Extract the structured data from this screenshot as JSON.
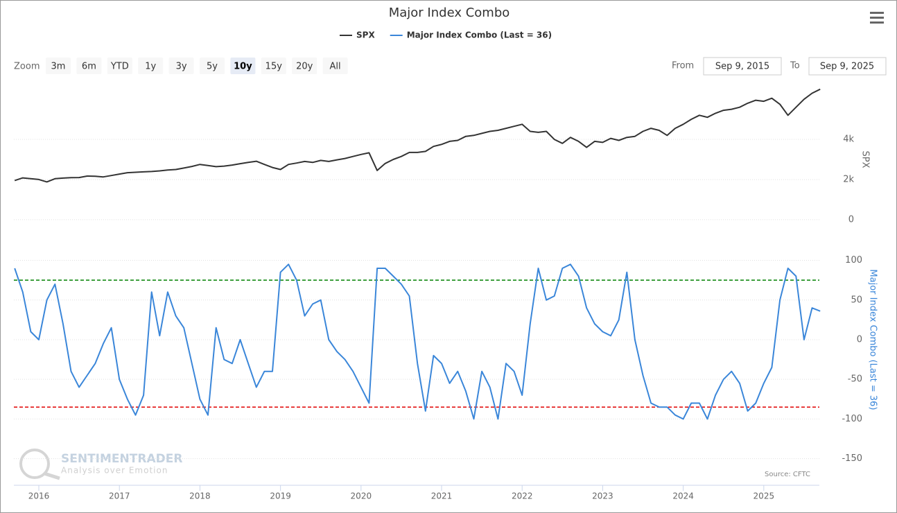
{
  "chart_data": {
    "type": "line",
    "title": "Major Index Combo",
    "x": [
      2015.7,
      2015.8,
      2015.9,
      2016.0,
      2016.1,
      2016.2,
      2016.3,
      2016.4,
      2016.5,
      2016.6,
      2016.7,
      2016.8,
      2016.9,
      2017.0,
      2017.1,
      2017.2,
      2017.3,
      2017.4,
      2017.5,
      2017.6,
      2017.7,
      2017.8,
      2017.9,
      2018.0,
      2018.1,
      2018.2,
      2018.3,
      2018.4,
      2018.5,
      2018.6,
      2018.7,
      2018.8,
      2018.9,
      2019.0,
      2019.1,
      2019.2,
      2019.3,
      2019.4,
      2019.5,
      2019.6,
      2019.7,
      2019.8,
      2019.9,
      2020.0,
      2020.1,
      2020.2,
      2020.3,
      2020.4,
      2020.5,
      2020.6,
      2020.7,
      2020.8,
      2020.9,
      2021.0,
      2021.1,
      2021.2,
      2021.3,
      2021.4,
      2021.5,
      2021.6,
      2021.7,
      2021.8,
      2021.9,
      2022.0,
      2022.1,
      2022.2,
      2022.3,
      2022.4,
      2022.5,
      2022.6,
      2022.7,
      2022.8,
      2022.9,
      2023.0,
      2023.1,
      2023.2,
      2023.3,
      2023.4,
      2023.5,
      2023.6,
      2023.7,
      2023.8,
      2023.9,
      2024.0,
      2024.1,
      2024.2,
      2024.3,
      2024.4,
      2024.5,
      2024.6,
      2024.7,
      2024.8,
      2024.9,
      2025.0,
      2025.1,
      2025.2,
      2025.3,
      2025.4,
      2025.5,
      2025.6,
      2025.7
    ],
    "xlim": [
      2015.69,
      2025.69
    ],
    "xticks": [
      2016,
      2017,
      2018,
      2019,
      2020,
      2021,
      2022,
      2023,
      2024,
      2025
    ],
    "series": [
      {
        "name": "SPX",
        "color": "#333333",
        "axis": "y",
        "values": [
          1950,
          2080,
          2040,
          2000,
          1880,
          2040,
          2070,
          2090,
          2100,
          2170,
          2160,
          2130,
          2200,
          2270,
          2340,
          2360,
          2380,
          2400,
          2430,
          2470,
          2500,
          2570,
          2650,
          2750,
          2700,
          2640,
          2670,
          2720,
          2790,
          2850,
          2910,
          2750,
          2600,
          2500,
          2750,
          2820,
          2900,
          2850,
          2950,
          2900,
          2980,
          3050,
          3150,
          3250,
          3330,
          2450,
          2800,
          3000,
          3150,
          3350,
          3350,
          3400,
          3650,
          3750,
          3900,
          3950,
          4150,
          4200,
          4300,
          4400,
          4450,
          4550,
          4650,
          4750,
          4400,
          4350,
          4400,
          4000,
          3800,
          4100,
          3900,
          3600,
          3900,
          3850,
          4050,
          3950,
          4100,
          4150,
          4400,
          4550,
          4450,
          4200,
          4550,
          4750,
          5000,
          5200,
          5100,
          5300,
          5450,
          5500,
          5600,
          5800,
          5950,
          5900,
          6050,
          5750,
          5200,
          5600,
          6000,
          6300,
          6500
        ]
      },
      {
        "name": "Major Index Combo (Last = 36)",
        "color": "#3a86d9",
        "axis": "y2",
        "values": [
          90,
          60,
          10,
          0,
          50,
          70,
          20,
          -40,
          -60,
          -45,
          -30,
          -5,
          15,
          -50,
          -75,
          -95,
          -70,
          60,
          5,
          60,
          30,
          15,
          -30,
          -75,
          -95,
          15,
          -25,
          -30,
          0,
          -30,
          -60,
          -40,
          -40,
          85,
          95,
          75,
          30,
          45,
          50,
          0,
          -15,
          -25,
          -40,
          -60,
          -80,
          90,
          90,
          80,
          70,
          55,
          -30,
          -90,
          -20,
          -30,
          -55,
          -40,
          -65,
          -100,
          -40,
          -60,
          -100,
          -30,
          -40,
          -70,
          20,
          90,
          50,
          55,
          90,
          95,
          80,
          40,
          20,
          10,
          5,
          25,
          85,
          0,
          -45,
          -80,
          -85,
          -85,
          -95,
          -100,
          -80,
          -80,
          -100,
          -70,
          -50,
          -40,
          -55,
          -90,
          -80,
          -55,
          -35,
          50,
          90,
          80,
          0,
          40,
          36
        ]
      }
    ],
    "ylim": [
      -800,
      6800
    ],
    "yticks": [
      0,
      {
        "value": 2000,
        "label": "2k"
      },
      {
        "value": 4000,
        "label": "4k"
      }
    ],
    "y_label": "SPX",
    "y2lim": [
      -175,
      115
    ],
    "y2ticks": [
      100,
      50,
      0,
      -50,
      -100,
      -150
    ],
    "y2_label": "Major Index Combo (Last = 36)",
    "y2_lines": [
      {
        "value": 75,
        "color": "#008000"
      },
      {
        "value": -85,
        "color": "#e00000"
      }
    ],
    "grid": true,
    "source": "Source: CFTC"
  },
  "zoom": {
    "label": "Zoom",
    "buttons": [
      "3m",
      "6m",
      "YTD",
      "1y",
      "3y",
      "5y",
      "10y",
      "15y",
      "20y",
      "All"
    ],
    "selected": 6
  },
  "range": {
    "from_label": "From",
    "from": "Sep 9, 2015",
    "to_label": "To",
    "to": "Sep 9, 2025"
  },
  "watermark": {
    "brand": "SENTIMENTRADER",
    "tagline": "Analysis over Emotion"
  }
}
